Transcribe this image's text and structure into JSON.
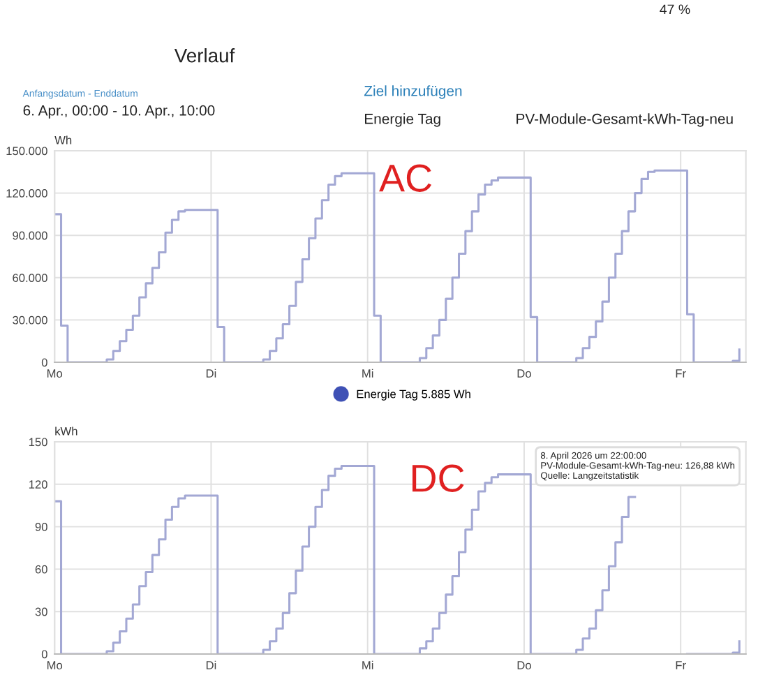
{
  "chart_data": [
    {
      "type": "step",
      "title": "Verlauf",
      "ylabel": "Wh",
      "annotations": [
        "Anfangsdatum - Enddatum",
        "6. Apr., 00:00 - 10. Apr., 10:00",
        "Ziel hinzufügen",
        "Energie Tag",
        "PV-Module-Gesamt-kWh-Tag-neu",
        "47 %",
        "AC"
      ],
      "categories": [
        "Mo",
        null,
        null,
        null,
        null,
        null,
        null,
        null,
        null,
        null,
        null,
        null,
        null,
        null,
        null,
        null,
        null,
        null,
        null,
        null,
        null,
        null,
        null,
        null,
        "Di",
        null,
        null,
        null,
        null,
        null,
        null,
        null,
        null,
        null,
        null,
        null,
        null,
        null,
        null,
        null,
        null,
        null,
        null,
        null,
        null,
        null,
        null,
        null,
        "Mi",
        null,
        null,
        null,
        null,
        null,
        null,
        null,
        null,
        null,
        null,
        null,
        null,
        null,
        null,
        null,
        null,
        null,
        null,
        null,
        null,
        null,
        null,
        null,
        "Do",
        null,
        null,
        null,
        null,
        null,
        null,
        null,
        null,
        null,
        null,
        null,
        null,
        null,
        null,
        null,
        null,
        null,
        null,
        null,
        null,
        null,
        null,
        null,
        "Fr",
        null,
        null,
        null,
        null,
        null,
        null,
        null,
        null,
        null
      ],
      "series": [
        {
          "name": "Energie Tag 5.885 Wh",
          "color": "#a3a8d4",
          "values": [
            105000,
            26000,
            0,
            0,
            0,
            0,
            0,
            0,
            2000,
            8000,
            15000,
            23000,
            33000,
            46000,
            56000,
            67000,
            78000,
            92000,
            101000,
            107000,
            108000,
            108000,
            108000,
            108000,
            108000,
            25000,
            0,
            0,
            0,
            0,
            0,
            0,
            2000,
            8000,
            17000,
            27000,
            40000,
            57000,
            73000,
            88000,
            102000,
            115000,
            126000,
            132000,
            134000,
            134000,
            134000,
            134000,
            134000,
            33000,
            0,
            0,
            0,
            0,
            0,
            0,
            3000,
            10000,
            19000,
            30000,
            45000,
            60000,
            77000,
            93000,
            107000,
            119000,
            126000,
            129000,
            131000,
            131000,
            131000,
            131000,
            131000,
            32000,
            0,
            0,
            0,
            0,
            0,
            0,
            3000,
            10000,
            18000,
            29000,
            43000,
            60000,
            77000,
            93000,
            107000,
            120000,
            130000,
            135000,
            136000,
            136000,
            136000,
            136000,
            136000,
            34000,
            0,
            0,
            0,
            0,
            0,
            0,
            1000,
            9000
          ]
        }
      ],
      "ylim": [
        0,
        150000
      ],
      "yticks": [
        {
          "value": 0,
          "label": "0"
        },
        {
          "value": 30000,
          "label": "30.000"
        },
        {
          "value": 60000,
          "label": "60.000"
        },
        {
          "value": 90000,
          "label": "90.000"
        },
        {
          "value": 120000,
          "label": "120.000"
        },
        {
          "value": 150000,
          "label": "150.000"
        }
      ],
      "grid": true,
      "legend": "bottom"
    },
    {
      "type": "step",
      "ylabel": "kWh",
      "annotations": [
        "DC",
        "8. April 2026 um 22:00:00\nPV-Module-Gesamt-kWh-Tag-neu: 126,88 kWh\nQuelle: Langzeitstatistik"
      ],
      "categories": [
        "Mo",
        null,
        null,
        null,
        null,
        null,
        null,
        null,
        null,
        null,
        null,
        null,
        null,
        null,
        null,
        null,
        null,
        null,
        null,
        null,
        null,
        null,
        null,
        null,
        "Di",
        null,
        null,
        null,
        null,
        null,
        null,
        null,
        null,
        null,
        null,
        null,
        null,
        null,
        null,
        null,
        null,
        null,
        null,
        null,
        null,
        null,
        null,
        null,
        "Mi",
        null,
        null,
        null,
        null,
        null,
        null,
        null,
        null,
        null,
        null,
        null,
        null,
        null,
        null,
        null,
        null,
        null,
        null,
        null,
        null,
        null,
        null,
        null,
        "Do",
        null,
        null,
        null,
        null,
        null,
        null,
        null,
        null,
        null,
        null,
        null,
        null,
        null,
        null,
        null,
        null,
        null,
        null,
        null,
        null,
        null,
        null,
        null,
        "Fr",
        null,
        null,
        null,
        null,
        null,
        null,
        null,
        null,
        null
      ],
      "series": [
        {
          "color": "#a3a8d4",
          "values": [
            108,
            0,
            0,
            0,
            0,
            0,
            0,
            0,
            2,
            8,
            16,
            25,
            35,
            48,
            58,
            70,
            81,
            95,
            104,
            110,
            112,
            112,
            112,
            112,
            112,
            0,
            0,
            0,
            0,
            0,
            0,
            0,
            3,
            9,
            18,
            29,
            43,
            59,
            76,
            90,
            104,
            116,
            126,
            131,
            133,
            133,
            133,
            133,
            133,
            0,
            0,
            0,
            0,
            0,
            0,
            0,
            4,
            9,
            18,
            29,
            42,
            55,
            72,
            88,
            102,
            115,
            121,
            125,
            127,
            127,
            127,
            127,
            127,
            0,
            0,
            0,
            0,
            0,
            0,
            0,
            3,
            11,
            18,
            31,
            45,
            62,
            79,
            97,
            111,
            null,
            null,
            null,
            null,
            null,
            null,
            null,
            null,
            0,
            0,
            0,
            0,
            0,
            0,
            0,
            1,
            9
          ]
        }
      ],
      "ylim": [
        0,
        150
      ],
      "yticks": [
        0,
        30,
        60,
        90,
        120,
        150
      ],
      "grid": true
    }
  ]
}
